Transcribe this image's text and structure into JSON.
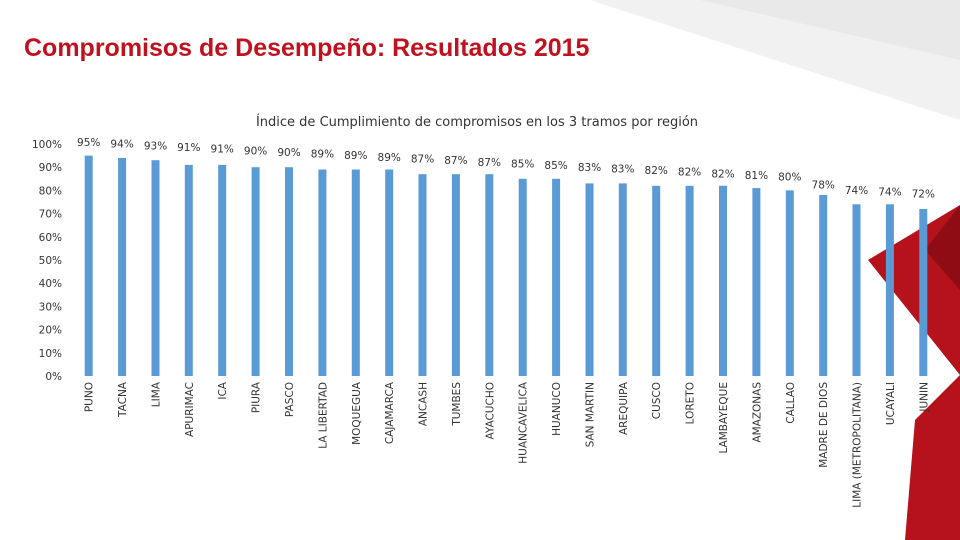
{
  "slide": {
    "title": "Compromisos de Desempeño: Resultados 2015"
  },
  "colors": {
    "title": "#c0111f",
    "bar": "#5b9bd5",
    "accent_red": "#b5121b",
    "accent_dark": "#7d0a12",
    "facet_light": "#f0f0f0"
  },
  "chart_data": {
    "type": "bar",
    "title": "Índice de Cumplimiento de compromisos en los 3 tramos por región",
    "xlabel": "",
    "ylabel": "",
    "ylim": [
      0,
      100
    ],
    "yticks": [
      "0%",
      "10%",
      "20%",
      "30%",
      "40%",
      "50%",
      "60%",
      "70%",
      "80%",
      "90%",
      "100%"
    ],
    "grid": false,
    "categories": [
      "PUNO",
      "TACNA",
      "LIMA",
      "APURIMAC",
      "ICA",
      "PIURA",
      "PASCO",
      "LA LIBERTAD",
      "MOQUEGUA",
      "CAJAMARCA",
      "ANCASH",
      "TUMBES",
      "AYACUCHO",
      "HUANCAVELICA",
      "HUANUCO",
      "SAN MARTIN",
      "AREQUIPA",
      "CUSCO",
      "LORETO",
      "LAMBAYEQUE",
      "AMAZONAS",
      "CALLAO",
      "MADRE DE DIOS",
      "LIMA (METROPOLITANA)",
      "UCAYALI",
      "JUNIN"
    ],
    "values": [
      95,
      94,
      93,
      91,
      91,
      90,
      90,
      89,
      89,
      89,
      87,
      87,
      87,
      85,
      85,
      83,
      83,
      82,
      82,
      82,
      81,
      80,
      78,
      74,
      74,
      72
    ],
    "labels": [
      "95%",
      "94%",
      "93%",
      "91%",
      "91%",
      "90%",
      "90%",
      "89%",
      "89%",
      "89%",
      "87%",
      "87%",
      "87%",
      "85%",
      "85%",
      "83%",
      "83%",
      "82%",
      "82%",
      "82%",
      "81%",
      "80%",
      "78%",
      "74%",
      "74%",
      "72%"
    ]
  }
}
